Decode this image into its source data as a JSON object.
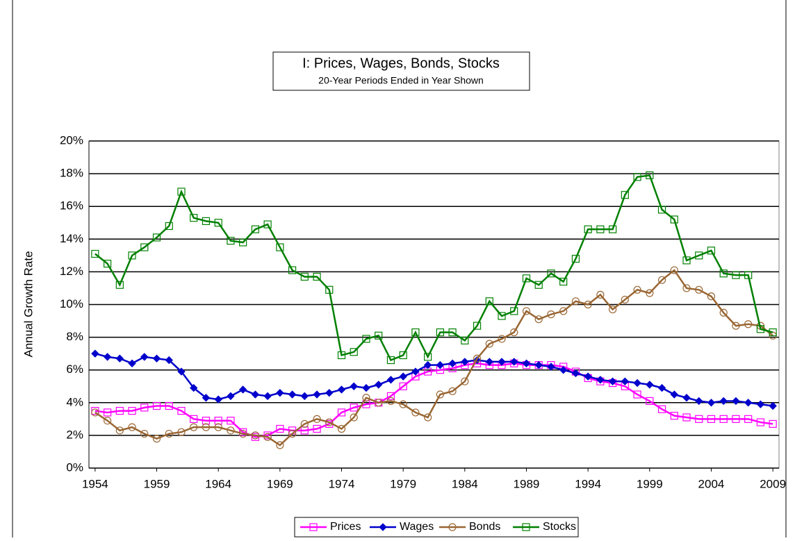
{
  "chart_data": {
    "type": "line",
    "title": "I:  Prices, Wages, Bonds, Stocks",
    "subtitle": "20-Year Periods Ended in Year Shown",
    "y_label": "Annual Growth Rate",
    "x": [
      1954,
      1955,
      1956,
      1957,
      1958,
      1959,
      1960,
      1961,
      1962,
      1963,
      1964,
      1965,
      1966,
      1967,
      1968,
      1969,
      1970,
      1971,
      1972,
      1973,
      1974,
      1975,
      1976,
      1977,
      1978,
      1979,
      1980,
      1981,
      1982,
      1983,
      1984,
      1985,
      1986,
      1987,
      1988,
      1989,
      1990,
      1991,
      1992,
      1993,
      1994,
      1995,
      1996,
      1997,
      1998,
      1999,
      2000,
      2001,
      2002,
      2003,
      2004,
      2005,
      2006,
      2007,
      2008,
      2009
    ],
    "xlim": [
      1953.5,
      2009.5
    ],
    "xticks": [
      1954,
      1959,
      1964,
      1969,
      1974,
      1979,
      1984,
      1989,
      1994,
      1999,
      2004,
      2009
    ],
    "ylim": [
      0,
      20
    ],
    "yticks": [
      {
        "value": 0,
        "label": "0%"
      },
      {
        "value": 2,
        "label": "2%"
      },
      {
        "value": 4,
        "label": "4%"
      },
      {
        "value": 6,
        "label": "6%"
      },
      {
        "value": 8,
        "label": "8%"
      },
      {
        "value": 10,
        "label": "10%"
      },
      {
        "value": 12,
        "label": "12%"
      },
      {
        "value": 14,
        "label": "14%"
      },
      {
        "value": 16,
        "label": "16%"
      },
      {
        "value": 18,
        "label": "18%"
      },
      {
        "value": 20,
        "label": "20%"
      }
    ],
    "grid": true,
    "legend": "bottom",
    "series": [
      {
        "name": "Prices",
        "color": "#ff00ff",
        "marker": "square-open",
        "values": [
          3.5,
          3.4,
          3.5,
          3.5,
          3.7,
          3.8,
          3.8,
          3.5,
          3.0,
          2.9,
          2.9,
          2.9,
          2.2,
          1.9,
          2.0,
          2.4,
          2.3,
          2.3,
          2.4,
          2.7,
          3.4,
          3.7,
          3.9,
          4.0,
          4.4,
          5.0,
          5.6,
          5.9,
          6.0,
          6.1,
          6.3,
          6.4,
          6.3,
          6.3,
          6.4,
          6.3,
          6.3,
          6.3,
          6.2,
          5.9,
          5.5,
          5.3,
          5.2,
          5.0,
          4.5,
          4.1,
          3.6,
          3.2,
          3.1,
          3.0,
          3.0,
          3.0,
          3.0,
          3.0,
          2.8,
          2.7
        ]
      },
      {
        "name": "Wages",
        "color": "#0000cc",
        "marker": "diamond",
        "values": [
          7.0,
          6.8,
          6.7,
          6.4,
          6.8,
          6.7,
          6.6,
          5.9,
          4.9,
          4.3,
          4.2,
          4.4,
          4.8,
          4.5,
          4.4,
          4.6,
          4.5,
          4.4,
          4.5,
          4.6,
          4.8,
          5.0,
          4.9,
          5.1,
          5.4,
          5.6,
          5.9,
          6.3,
          6.3,
          6.4,
          6.5,
          6.6,
          6.5,
          6.5,
          6.5,
          6.4,
          6.3,
          6.2,
          6.0,
          5.8,
          5.6,
          5.4,
          5.3,
          5.3,
          5.2,
          5.1,
          4.9,
          4.5,
          4.3,
          4.1,
          4.0,
          4.1,
          4.1,
          4.0,
          3.9,
          3.8
        ]
      },
      {
        "name": "Bonds",
        "color": "#996633",
        "marker": "circle-open",
        "values": [
          3.4,
          2.9,
          2.3,
          2.5,
          2.1,
          1.8,
          2.1,
          2.2,
          2.5,
          2.5,
          2.5,
          2.3,
          2.1,
          2.0,
          1.9,
          1.4,
          2.1,
          2.7,
          3.0,
          2.8,
          2.4,
          3.1,
          4.3,
          4.0,
          4.1,
          3.9,
          3.4,
          3.1,
          4.5,
          4.7,
          5.3,
          6.7,
          7.6,
          7.9,
          8.3,
          9.6,
          9.1,
          9.4,
          9.6,
          10.2,
          10.0,
          10.6,
          9.7,
          10.3,
          10.9,
          10.7,
          11.5,
          12.1,
          11.0,
          10.9,
          10.5,
          9.5,
          8.7,
          8.8,
          8.7,
          8.1
        ]
      },
      {
        "name": "Stocks",
        "color": "#008000",
        "marker": "square-open",
        "values": [
          13.1,
          12.5,
          11.2,
          13.0,
          13.5,
          14.1,
          14.8,
          16.9,
          15.3,
          15.1,
          15.0,
          13.9,
          13.8,
          14.6,
          14.9,
          13.5,
          12.1,
          11.7,
          11.7,
          10.9,
          6.9,
          7.1,
          7.9,
          8.1,
          6.6,
          6.9,
          8.3,
          6.8,
          8.3,
          8.3,
          7.8,
          8.7,
          10.2,
          9.3,
          9.6,
          11.6,
          11.2,
          11.9,
          11.4,
          12.8,
          14.6,
          14.6,
          14.6,
          16.7,
          17.8,
          17.9,
          15.8,
          15.2,
          12.7,
          13.0,
          13.3,
          11.9,
          11.8,
          11.8,
          8.5,
          8.3
        ]
      }
    ]
  }
}
